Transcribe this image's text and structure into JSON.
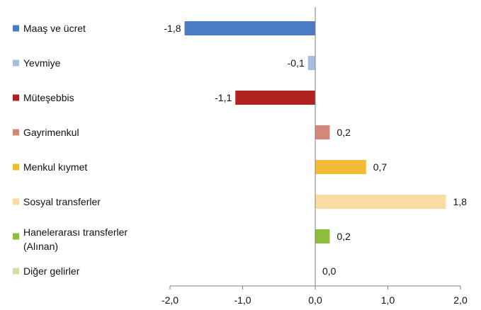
{
  "chart_data": {
    "type": "bar",
    "orientation": "horizontal",
    "title": "",
    "xlabel": "",
    "ylabel": "",
    "xlim": [
      -2.0,
      2.0
    ],
    "ticks": [
      -2.0,
      -1.0,
      0.0,
      1.0,
      2.0
    ],
    "tick_labels": [
      "-2,0",
      "-1,0",
      "0,0",
      "1,0",
      "2,0"
    ],
    "grid": false,
    "legend_placement": "left",
    "categories": [
      [
        "Maaş ve ücret"
      ],
      [
        "Yevmiye"
      ],
      [
        "Müteşebbis"
      ],
      [
        "Gayrimenkul"
      ],
      [
        "Menkul kıymet"
      ],
      [
        "Sosyal transferler"
      ],
      [
        "Hanelerarası  transferler",
        "(Alınan)"
      ],
      [
        "Diğer gelirler"
      ]
    ],
    "values": [
      -1.8,
      -0.1,
      -1.1,
      0.2,
      0.7,
      1.8,
      0.2,
      0.0
    ],
    "value_labels": [
      "-1,8",
      "-0,1",
      "-1,1",
      "0,2",
      "0,7",
      "1,8",
      "0,2",
      "0,0"
    ],
    "colors": [
      "#4a7dc4",
      "#a6bfdf",
      "#b1211f",
      "#d4887a",
      "#f2bb36",
      "#fbdca4",
      "#8dbe3c",
      "#cfe0a4"
    ]
  }
}
